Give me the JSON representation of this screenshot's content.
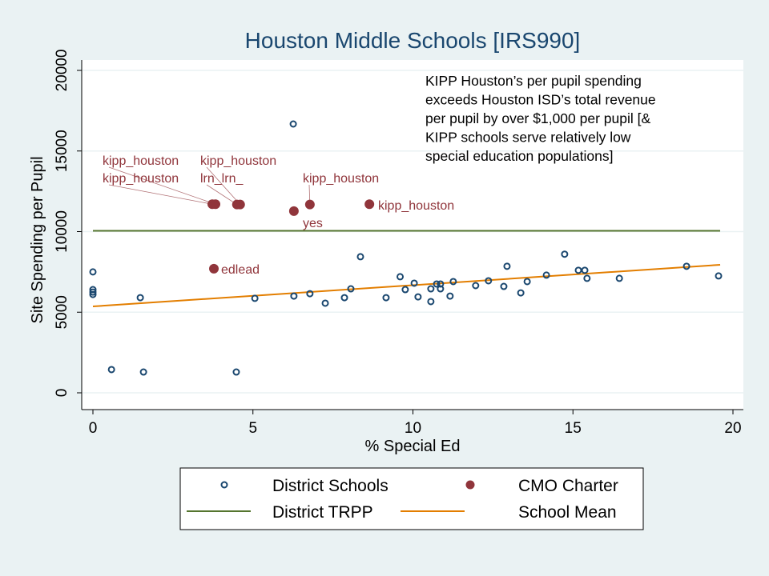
{
  "chart_data": {
    "type": "scatter",
    "title": "Houston Middle Schools [IRS990]",
    "xlabel": "% Special Ed",
    "ylabel": "Site Spending per Pupil",
    "xlim": [
      -0.3,
      20.3
    ],
    "ylim": [
      -1000,
      21000
    ],
    "xticks": [
      0,
      5,
      10,
      15,
      20
    ],
    "yticks": [
      0,
      5000,
      10000,
      15000,
      20000
    ],
    "grid": "horizontal",
    "legend_position": "bottom",
    "annotation": [
      "KIPP Houston’s per pupil spending",
      "exceeds Houston ISD’s total revenue",
      "per pupil by over $1,000 per pupil [&",
      "KIPP schools serve relatively low",
      "special education populations]"
    ],
    "series": [
      {
        "name": "District Schools",
        "marker": "hollow-circle",
        "color": "#1a476f",
        "points": [
          [
            0,
            7500
          ],
          [
            0,
            6400
          ],
          [
            0,
            6250
          ],
          [
            0,
            6100
          ],
          [
            0.58,
            1440
          ],
          [
            1.58,
            1290
          ],
          [
            1.48,
            5900
          ],
          [
            4.48,
            1290
          ],
          [
            5.06,
            5860
          ],
          [
            6.26,
            16675
          ],
          [
            6.28,
            6000
          ],
          [
            6.78,
            6150
          ],
          [
            7.26,
            5560
          ],
          [
            7.86,
            5900
          ],
          [
            8.06,
            6450
          ],
          [
            8.36,
            8440
          ],
          [
            9.16,
            5900
          ],
          [
            9.6,
            7200
          ],
          [
            9.76,
            6400
          ],
          [
            10.04,
            6800
          ],
          [
            10.16,
            5950
          ],
          [
            10.56,
            5660
          ],
          [
            10.56,
            6450
          ],
          [
            10.74,
            6750
          ],
          [
            10.86,
            6750
          ],
          [
            10.86,
            6450
          ],
          [
            11.16,
            6000
          ],
          [
            11.26,
            6900
          ],
          [
            11.96,
            6650
          ],
          [
            12.36,
            6950
          ],
          [
            12.84,
            6600
          ],
          [
            12.94,
            7850
          ],
          [
            13.37,
            6200
          ],
          [
            13.57,
            6900
          ],
          [
            14.17,
            7300
          ],
          [
            14.74,
            8600
          ],
          [
            15.17,
            7600
          ],
          [
            15.37,
            7600
          ],
          [
            15.44,
            7100
          ],
          [
            16.45,
            7100
          ],
          [
            18.55,
            7850
          ],
          [
            19.55,
            7250
          ]
        ]
      },
      {
        "name": "CMO Charter",
        "marker": "filled-circle",
        "color": "#90353b",
        "points": [
          {
            "x": 3.73,
            "y": 11700,
            "label": "kipp_houston"
          },
          {
            "x": 3.83,
            "y": 11700,
            "label": "kipp_houston"
          },
          {
            "x": 4.5,
            "y": 11680,
            "label": "lrn_lrn_"
          },
          {
            "x": 4.6,
            "y": 11680,
            "label": "kipp_houston"
          },
          {
            "x": 6.28,
            "y": 11270,
            "label": "yes"
          },
          {
            "x": 6.78,
            "y": 11680,
            "label": "kipp_houston"
          },
          {
            "x": 8.64,
            "y": 11700,
            "label": "kipp_houston"
          },
          {
            "x": 3.78,
            "y": 7700,
            "label": "edlead"
          }
        ]
      },
      {
        "name": "District TRPP",
        "type": "line",
        "color": "#55752f",
        "x": [
          0,
          19.6
        ],
        "y": [
          10050,
          10050
        ]
      },
      {
        "name": "School Mean",
        "type": "line",
        "color": "#e37e00",
        "x": [
          0,
          19.6
        ],
        "y": [
          5360,
          7940
        ]
      }
    ]
  }
}
